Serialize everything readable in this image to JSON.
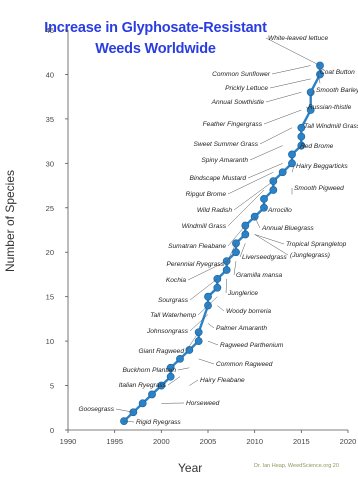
{
  "colors": {
    "title": "#2a3de0",
    "marker": "#2b82c6",
    "marker_edge": "#1a5f99",
    "label": "#222222",
    "leader": "#555555",
    "axis": "#555555",
    "credit": "#8a9a5a"
  },
  "chart_data": {
    "type": "line",
    "title_lines": [
      "Increase in Glyphosate-Resistant",
      "Weeds Worldwide"
    ],
    "xlabel": "Year",
    "ylabel": "Number of Species",
    "xlim": [
      1990,
      2020
    ],
    "ylim": [
      0,
      45
    ],
    "xticks": [
      1990,
      1995,
      2000,
      2005,
      2010,
      2015,
      2020
    ],
    "yticks": [
      0,
      5,
      10,
      15,
      20,
      25,
      30,
      35,
      40,
      45
    ],
    "grid": false,
    "legend": "none",
    "credit": "Dr. Ian Heap, WeedScience.org 20",
    "series": [
      {
        "x": [
          1996,
          1997,
          1998,
          1999,
          2000,
          2001,
          2001,
          2002,
          2003,
          2004,
          2004,
          2005,
          2005,
          2006,
          2006,
          2007,
          2007,
          2008,
          2008,
          2009,
          2009,
          2010,
          2011,
          2011,
          2012,
          2012,
          2013,
          2014,
          2014,
          2015,
          2015,
          2015,
          2016,
          2016,
          2017,
          2017
        ],
        "y": [
          1,
          2,
          3,
          4,
          5,
          6,
          7,
          8,
          9,
          10,
          11,
          14,
          15,
          16,
          17,
          18,
          19,
          20,
          21,
          22,
          23,
          24,
          25,
          26,
          27,
          28,
          29,
          30,
          31,
          32,
          33,
          34,
          36,
          38,
          40,
          41
        ]
      }
    ],
    "annotations": [
      {
        "text": "White-leaved Iettuce",
        "x": 2017,
        "y": 41
      },
      {
        "text": "Coat Button",
        "x": 2017,
        "y": 39
      },
      {
        "text": "Smooth Barley",
        "x": 2016,
        "y": 37.5
      },
      {
        "text": "Russian-thistle",
        "x": 2016,
        "y": 36
      },
      {
        "text": "Tall Windmill Grass",
        "x": 2015,
        "y": 34
      },
      {
        "text": "Red Brome",
        "x": 2015,
        "y": 31.5
      },
      {
        "text": "Hairy Beggarticks",
        "x": 2014,
        "y": 29
      },
      {
        "text": "Smooth Pigweed",
        "x": 2014,
        "y": 26.5
      },
      {
        "text": "Common Sunflower",
        "x": 2016,
        "y": 41
      },
      {
        "text": "Prickly Lettuce",
        "x": 2016,
        "y": 39.5
      },
      {
        "text": "Annual Sowthistle",
        "x": 2015,
        "y": 38
      },
      {
        "text": "Feather Fingergrass",
        "x": 2015,
        "y": 36
      },
      {
        "text": "Sweet Summer Grass",
        "x": 2014,
        "y": 34
      },
      {
        "text": "Spiny Amaranth",
        "x": 2013,
        "y": 32
      },
      {
        "text": "Bindscape Mustard",
        "x": 2013,
        "y": 30
      },
      {
        "text": "Ripgut Brome",
        "x": 2012,
        "y": 29
      },
      {
        "text": "Wild Radish",
        "x": 2012,
        "y": 28
      },
      {
        "text": "Windmill Grass",
        "x": 2011,
        "y": 27
      },
      {
        "text": "Arrocillo",
        "x": 2011,
        "y": 25
      },
      {
        "text": "Annual Bluegrass",
        "x": 2010,
        "y": 24
      },
      {
        "text": "Tropical Sprangletop",
        "x": 2010,
        "y": 22
      },
      {
        "text": "(Junglegrass)",
        "x": 2010,
        "y": 22
      },
      {
        "text": "Sumatran Fleabane",
        "x": 2009,
        "y": 23
      },
      {
        "text": "Perennial Ryegrass",
        "x": 2008,
        "y": 21
      },
      {
        "text": "Liverseedgrass",
        "x": 2009,
        "y": 21
      },
      {
        "text": "Gramilla mansa",
        "x": 2008,
        "y": 19
      },
      {
        "text": "Kochia",
        "x": 2007,
        "y": 19
      },
      {
        "text": "Junglerice",
        "x": 2007,
        "y": 17
      },
      {
        "text": "Sourgrass",
        "x": 2006,
        "y": 17
      },
      {
        "text": "Tall Waterhemp",
        "x": 2006,
        "y": 15
      },
      {
        "text": "Woody borreria",
        "x": 2006,
        "y": 14
      },
      {
        "text": "Johnsongrass",
        "x": 2005,
        "y": 13
      },
      {
        "text": "Palmer Amaranth",
        "x": 2005,
        "y": 12
      },
      {
        "text": "Giant Ragweed",
        "x": 2004,
        "y": 11
      },
      {
        "text": "Ragweed Parthenium",
        "x": 2005,
        "y": 10
      },
      {
        "text": "Common Ragweed",
        "x": 2004,
        "y": 8
      },
      {
        "text": "Buckhorn Plantain",
        "x": 2003,
        "y": 7
      },
      {
        "text": "Italian Ryegrass",
        "x": 2002,
        "y": 6
      },
      {
        "text": "Hairy Fleabane",
        "x": 2003,
        "y": 5
      },
      {
        "text": "Horseweed",
        "x": 2000,
        "y": 3
      },
      {
        "text": "Goosegrass",
        "x": 1997,
        "y": 2
      },
      {
        "text": "Rigid Ryegrass",
        "x": 1996,
        "y": 1
      }
    ]
  }
}
